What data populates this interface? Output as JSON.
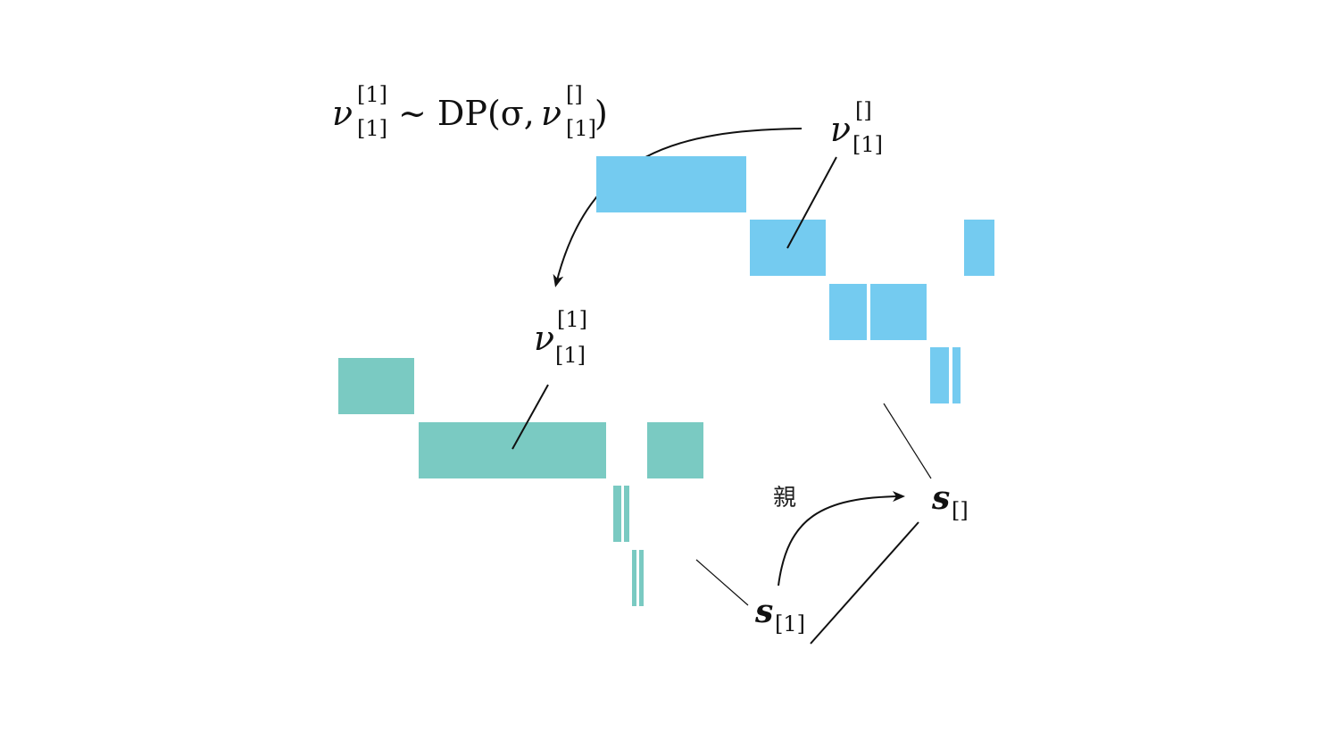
{
  "colors": {
    "blue": "#74CBF0",
    "teal": "#7ACAC2",
    "line": "#111111"
  },
  "equation": {
    "lhs_symbol": "ν",
    "lhs_sup": "[1]",
    "lhs_sub": "[1]",
    "relation": "∼ DP(σ,",
    "rhs_symbol": "ν",
    "rhs_sup": "[]",
    "rhs_sub": "[1]",
    "close": ")"
  },
  "label_nu_root": {
    "symbol": "ν",
    "sup": "[]",
    "sub": "[1]"
  },
  "label_nu_child": {
    "symbol": "ν",
    "sup": "[1]",
    "sub": "[1]"
  },
  "label_s_root": {
    "symbol": "s",
    "sub": "[]"
  },
  "label_s_child": {
    "symbol": "s",
    "sub": "[1]"
  },
  "parent_label": "親",
  "icons": {
    "arrowhead": "arrowhead-icon"
  }
}
